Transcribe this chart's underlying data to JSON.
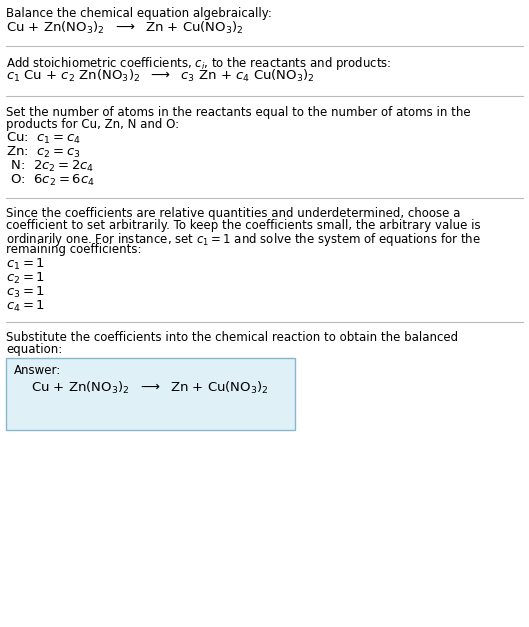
{
  "title": "Balance the chemical equation algebraically:",
  "equation_line": "Cu + Zn(NO$_3$)$_2$  $\\longrightarrow$  Zn + Cu(NO$_3$)$_2$",
  "section2_intro": "Add stoichiometric coefficients, $c_i$, to the reactants and products:",
  "section2_eq": "$c_1$ Cu + $c_2$ Zn(NO$_3$)$_2$  $\\longrightarrow$  $c_3$ Zn + $c_4$ Cu(NO$_3$)$_2$",
  "section3_intro_line1": "Set the number of atoms in the reactants equal to the number of atoms in the",
  "section3_intro_line2": "products for Cu, Zn, N and O:",
  "section3_lines": [
    [
      "Cu:  ",
      "$c_1 = c_4$"
    ],
    [
      "Zn:  ",
      "$c_2 = c_3$"
    ],
    [
      " N:  ",
      "$2 c_2 = 2 c_4$"
    ],
    [
      " O:  ",
      "$6 c_2 = 6 c_4$"
    ]
  ],
  "section4_intro_line1": "Since the coefficients are relative quantities and underdetermined, choose a",
  "section4_intro_line2": "coefficient to set arbitrarily. To keep the coefficients small, the arbitrary value is",
  "section4_intro_line3": "ordinarily one. For instance, set $c_1 = 1$ and solve the system of equations for the",
  "section4_intro_line4": "remaining coefficients:",
  "section4_lines": [
    "$c_1 = 1$",
    "$c_2 = 1$",
    "$c_3 = 1$",
    "$c_4 = 1$"
  ],
  "section5_intro_line1": "Substitute the coefficients into the chemical reaction to obtain the balanced",
  "section5_intro_line2": "equation:",
  "answer_label": "Answer:",
  "answer_eq": "Cu + Zn(NO$_3$)$_2$  $\\longrightarrow$  Zn + Cu(NO$_3$)$_2$",
  "bg_color": "#ffffff",
  "text_color": "#000000",
  "answer_box_facecolor": "#dff0f7",
  "answer_box_edgecolor": "#85b8cc",
  "sep_line_color": "#bbbbbb",
  "fs_body": 8.5,
  "fs_math": 9.5
}
